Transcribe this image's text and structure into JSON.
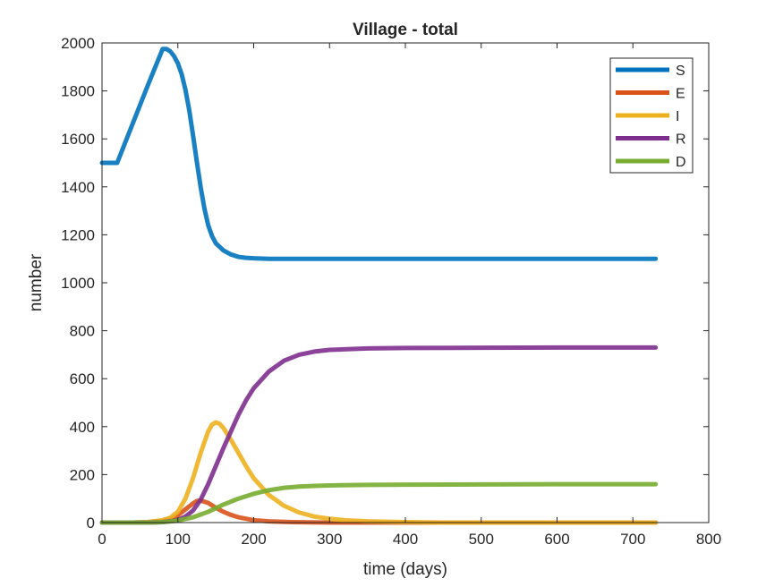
{
  "chart_data": {
    "type": "line",
    "title": "Village - total",
    "xlabel": "time (days)",
    "ylabel": "number",
    "xlim": [
      0,
      800
    ],
    "ylim": [
      0,
      2000
    ],
    "xticks": [
      0,
      100,
      200,
      300,
      400,
      500,
      600,
      700,
      800
    ],
    "yticks": [
      0,
      200,
      400,
      600,
      800,
      1000,
      1200,
      1400,
      1600,
      1800,
      2000
    ],
    "grid": false,
    "legend_position": "top-right",
    "series": [
      {
        "name": "S",
        "color": "#0072BD",
        "x": [
          0,
          20,
          40,
          60,
          80,
          85,
          90,
          95,
          100,
          105,
          110,
          115,
          120,
          125,
          130,
          135,
          140,
          145,
          150,
          160,
          170,
          180,
          190,
          200,
          220,
          250,
          300,
          400,
          500,
          600,
          700,
          730
        ],
        "y": [
          1500,
          1500,
          1660,
          1820,
          1975,
          1975,
          1965,
          1945,
          1915,
          1870,
          1805,
          1720,
          1615,
          1505,
          1400,
          1310,
          1240,
          1195,
          1165,
          1135,
          1118,
          1108,
          1104,
          1102,
          1100,
          1100,
          1100,
          1100,
          1100,
          1100,
          1100,
          1100
        ]
      },
      {
        "name": "E",
        "color": "#D95319",
        "x": [
          0,
          40,
          60,
          80,
          90,
          100,
          110,
          120,
          125,
          130,
          140,
          150,
          160,
          170,
          180,
          200,
          220,
          250,
          300,
          400,
          500,
          600,
          700,
          730
        ],
        "y": [
          0,
          0,
          2,
          8,
          15,
          30,
          55,
          80,
          90,
          92,
          82,
          62,
          45,
          32,
          22,
          10,
          5,
          2,
          0,
          0,
          0,
          0,
          0,
          0
        ]
      },
      {
        "name": "I",
        "color": "#EDB120",
        "x": [
          0,
          40,
          60,
          80,
          90,
          100,
          110,
          120,
          130,
          140,
          145,
          150,
          155,
          160,
          170,
          180,
          190,
          200,
          220,
          240,
          260,
          280,
          300,
          320,
          350,
          400,
          450,
          500,
          600,
          700,
          730
        ],
        "y": [
          0,
          0,
          2,
          10,
          20,
          45,
          100,
          185,
          290,
          380,
          408,
          418,
          412,
          395,
          345,
          290,
          235,
          185,
          115,
          70,
          42,
          25,
          16,
          10,
          5,
          2,
          0,
          0,
          0,
          0,
          0
        ]
      },
      {
        "name": "R",
        "color": "#7E2F8E",
        "x": [
          0,
          60,
          80,
          100,
          110,
          120,
          130,
          140,
          150,
          160,
          170,
          180,
          190,
          200,
          220,
          240,
          260,
          280,
          300,
          350,
          400,
          500,
          600,
          700,
          730
        ],
        "y": [
          0,
          0,
          2,
          10,
          25,
          50,
          95,
          160,
          235,
          310,
          380,
          450,
          510,
          560,
          630,
          675,
          700,
          713,
          720,
          726,
          728,
          729,
          730,
          730,
          730
        ]
      },
      {
        "name": "D",
        "color": "#77AC30",
        "x": [
          0,
          60,
          80,
          100,
          120,
          140,
          160,
          180,
          200,
          220,
          240,
          260,
          280,
          300,
          350,
          400,
          500,
          600,
          700,
          730
        ],
        "y": [
          0,
          0,
          2,
          8,
          22,
          45,
          75,
          100,
          120,
          135,
          145,
          150,
          153,
          155,
          157,
          158,
          159,
          160,
          160,
          160
        ]
      }
    ]
  }
}
